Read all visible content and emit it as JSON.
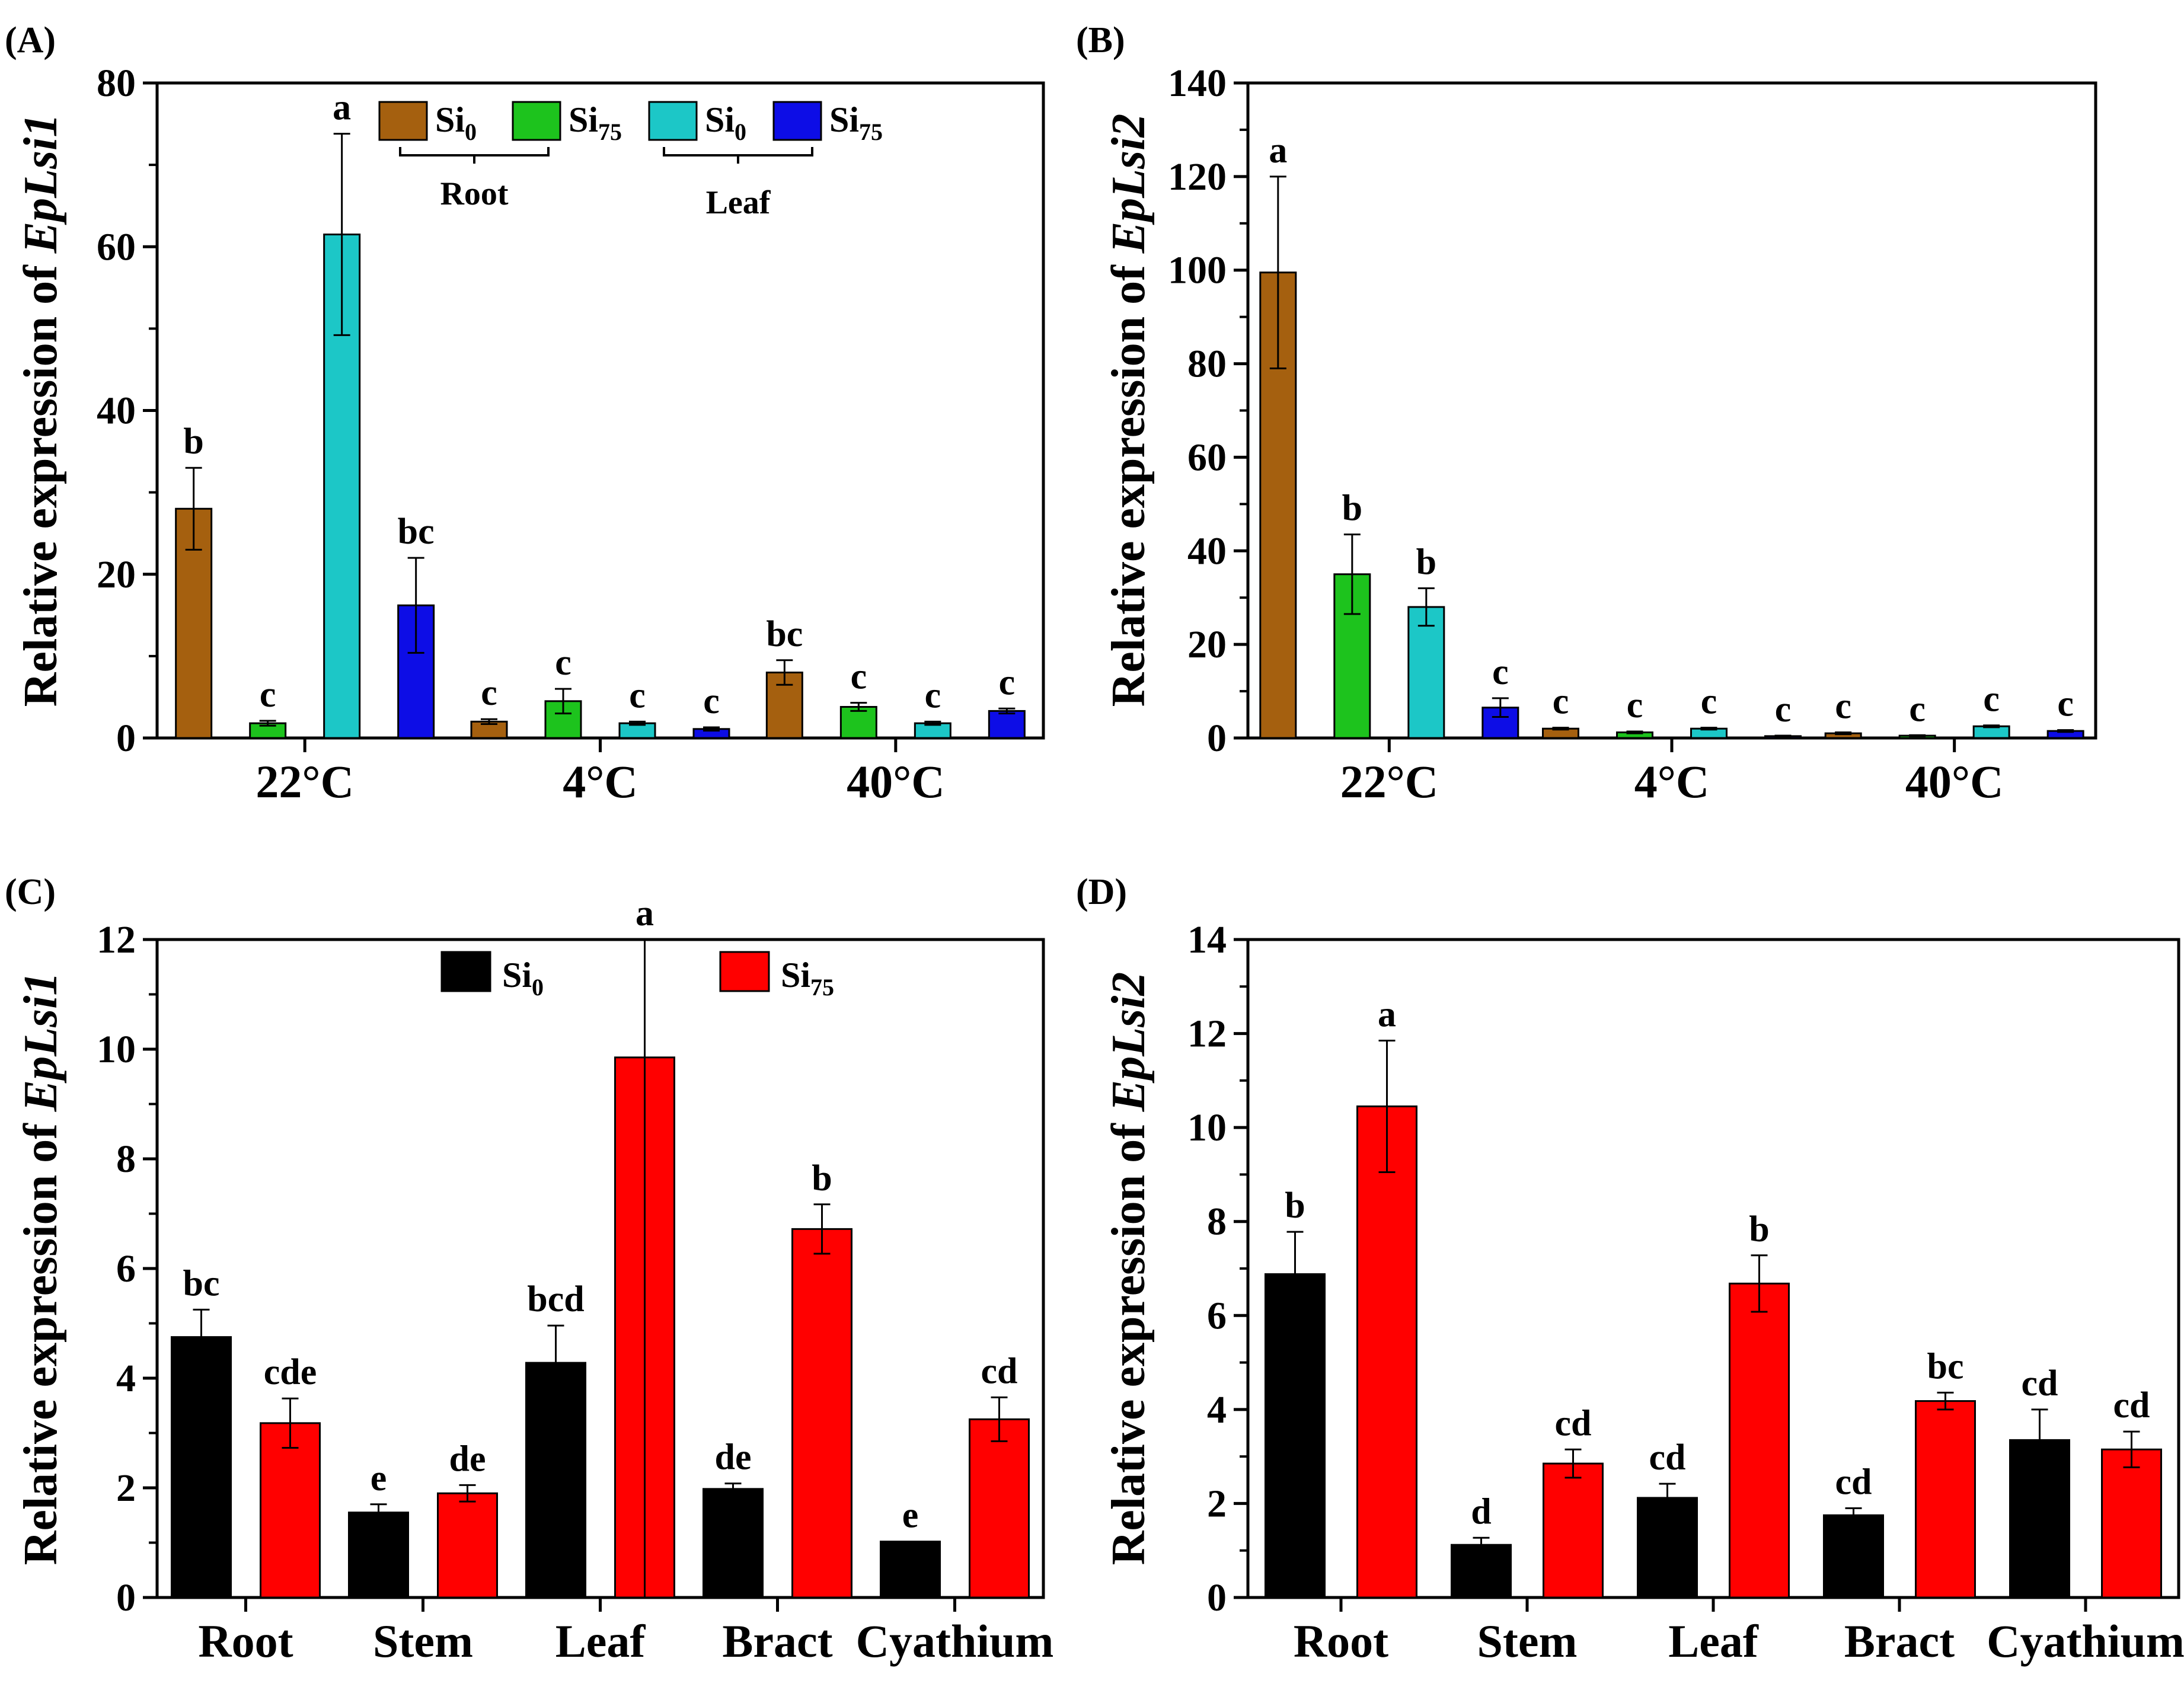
{
  "figure": {
    "background": "#ffffff"
  },
  "chart_data": [
    {
      "id": "A",
      "type": "bar",
      "panel_label": "(A)",
      "ylabel_prefix": "Relative expression of ",
      "ylabel_gene": "EpLsi1",
      "categories": [
        "22°C",
        "4°C",
        "40°C"
      ],
      "ylim": [
        0,
        80
      ],
      "yticks": [
        0,
        20,
        40,
        60,
        80
      ],
      "series": [
        {
          "name": "Si0 Root",
          "color": "#A5600F",
          "values": [
            28,
            2,
            8
          ],
          "errors": [
            5,
            0.3,
            1.5
          ],
          "letters": [
            "b",
            "c",
            "bc"
          ]
        },
        {
          "name": "Si75 Root",
          "color": "#1DC31D",
          "values": [
            1.8,
            4.5,
            3.8
          ],
          "errors": [
            0.3,
            1.5,
            0.5
          ],
          "letters": [
            "c",
            "c",
            "c"
          ]
        },
        {
          "name": "Si0 Leaf",
          "color": "#1CC7C7",
          "values": [
            61.5,
            1.8,
            1.8
          ],
          "errors": [
            12.3,
            0.2,
            0.2
          ],
          "letters": [
            "a",
            "c",
            "c"
          ]
        },
        {
          "name": "Si75 Leaf",
          "color": "#0D0DE6",
          "values": [
            16.2,
            1.1,
            3.3
          ],
          "errors": [
            5.8,
            0.2,
            0.3
          ],
          "letters": [
            "bc",
            "c",
            "c"
          ]
        }
      ],
      "legend": {
        "entries": [
          {
            "base": "Si",
            "sub": "0",
            "color": "#A5600F"
          },
          {
            "base": "Si",
            "sub": "75",
            "color": "#1DC31D"
          },
          {
            "base": "Si",
            "sub": "0",
            "color": "#1CC7C7"
          },
          {
            "base": "Si",
            "sub": "75",
            "color": "#0D0DE6"
          }
        ],
        "groups": [
          "Root",
          "Leaf"
        ]
      }
    },
    {
      "id": "B",
      "type": "bar",
      "panel_label": "(B)",
      "ylabel_prefix": "Relative expression of ",
      "ylabel_gene": "EpLsi2",
      "categories": [
        "22°C",
        "4°C",
        "40°C"
      ],
      "ylim": [
        0,
        140
      ],
      "yticks": [
        0,
        20,
        40,
        60,
        80,
        100,
        120,
        140
      ],
      "series": [
        {
          "name": "Si0 Root",
          "color": "#A5600F",
          "values": [
            99.5,
            2,
            1
          ],
          "errors": [
            20.5,
            0.2,
            0.2
          ],
          "letters": [
            "a",
            "c",
            "c"
          ]
        },
        {
          "name": "Si75 Root",
          "color": "#1DC31D",
          "values": [
            35,
            1.2,
            0.5
          ],
          "errors": [
            8.5,
            0.2,
            0.1
          ],
          "letters": [
            "b",
            "c",
            "c"
          ]
        },
        {
          "name": "Si0 Leaf",
          "color": "#1CC7C7",
          "values": [
            28,
            2,
            2.5
          ],
          "errors": [
            4,
            0.2,
            0.2
          ],
          "letters": [
            "b",
            "c",
            "c"
          ]
        },
        {
          "name": "Si75 Leaf",
          "color": "#0D0DE6",
          "values": [
            6.5,
            0.4,
            1.5
          ],
          "errors": [
            2,
            0.1,
            0.2
          ],
          "letters": [
            "c",
            "c",
            "c"
          ]
        }
      ]
    },
    {
      "id": "C",
      "type": "bar",
      "panel_label": "(C)",
      "ylabel_prefix": "Relative expression of ",
      "ylabel_gene": "EpLsi1",
      "categories": [
        "Root",
        "Stem",
        "Leaf",
        "Bract",
        "Cyathium"
      ],
      "ylim": [
        0,
        12
      ],
      "yticks": [
        0,
        2,
        4,
        6,
        8,
        10,
        12
      ],
      "series": [
        {
          "name": "Si0",
          "color": "#000000",
          "values": [
            4.75,
            1.55,
            4.28,
            1.98,
            1.02
          ],
          "errors": [
            0.5,
            0.15,
            0.68,
            0.1,
            0
          ],
          "letters": [
            "bc",
            "e",
            "bcd",
            "de",
            "e"
          ]
        },
        {
          "name": "Si75",
          "color": "#FF0000",
          "values": [
            3.18,
            1.9,
            9.85,
            6.72,
            3.25
          ],
          "errors": [
            0.45,
            0.15,
            11.2,
            0.45,
            0.4
          ],
          "letters": [
            "cde",
            "de",
            "a",
            "b",
            "cd"
          ]
        }
      ],
      "legend": {
        "entries": [
          {
            "base": "Si",
            "sub": "0",
            "color": "#000000"
          },
          {
            "base": "Si",
            "sub": "75",
            "color": "#FF0000"
          }
        ]
      }
    },
    {
      "id": "D",
      "type": "bar",
      "panel_label": "(D)",
      "ylabel_prefix": "Relative expression of ",
      "ylabel_gene": "EpLsi2",
      "categories": [
        "Root",
        "Stem",
        "Leaf",
        "Bract",
        "Cyathium"
      ],
      "ylim": [
        0,
        14
      ],
      "yticks": [
        0,
        2,
        4,
        6,
        8,
        10,
        12,
        14
      ],
      "series": [
        {
          "name": "Si0",
          "color": "#000000",
          "values": [
            6.88,
            1.12,
            2.12,
            1.75,
            3.35
          ],
          "errors": [
            0.9,
            0.15,
            0.3,
            0.15,
            0.65
          ],
          "letters": [
            "b",
            "d",
            "cd",
            "cd",
            "cd"
          ]
        },
        {
          "name": "Si75",
          "color": "#FF0000",
          "values": [
            10.45,
            2.85,
            6.68,
            4.18,
            3.15
          ],
          "errors": [
            1.4,
            0.3,
            0.6,
            0.18,
            0.38
          ],
          "letters": [
            "a",
            "cd",
            "b",
            "bc",
            "cd"
          ]
        }
      ]
    }
  ]
}
